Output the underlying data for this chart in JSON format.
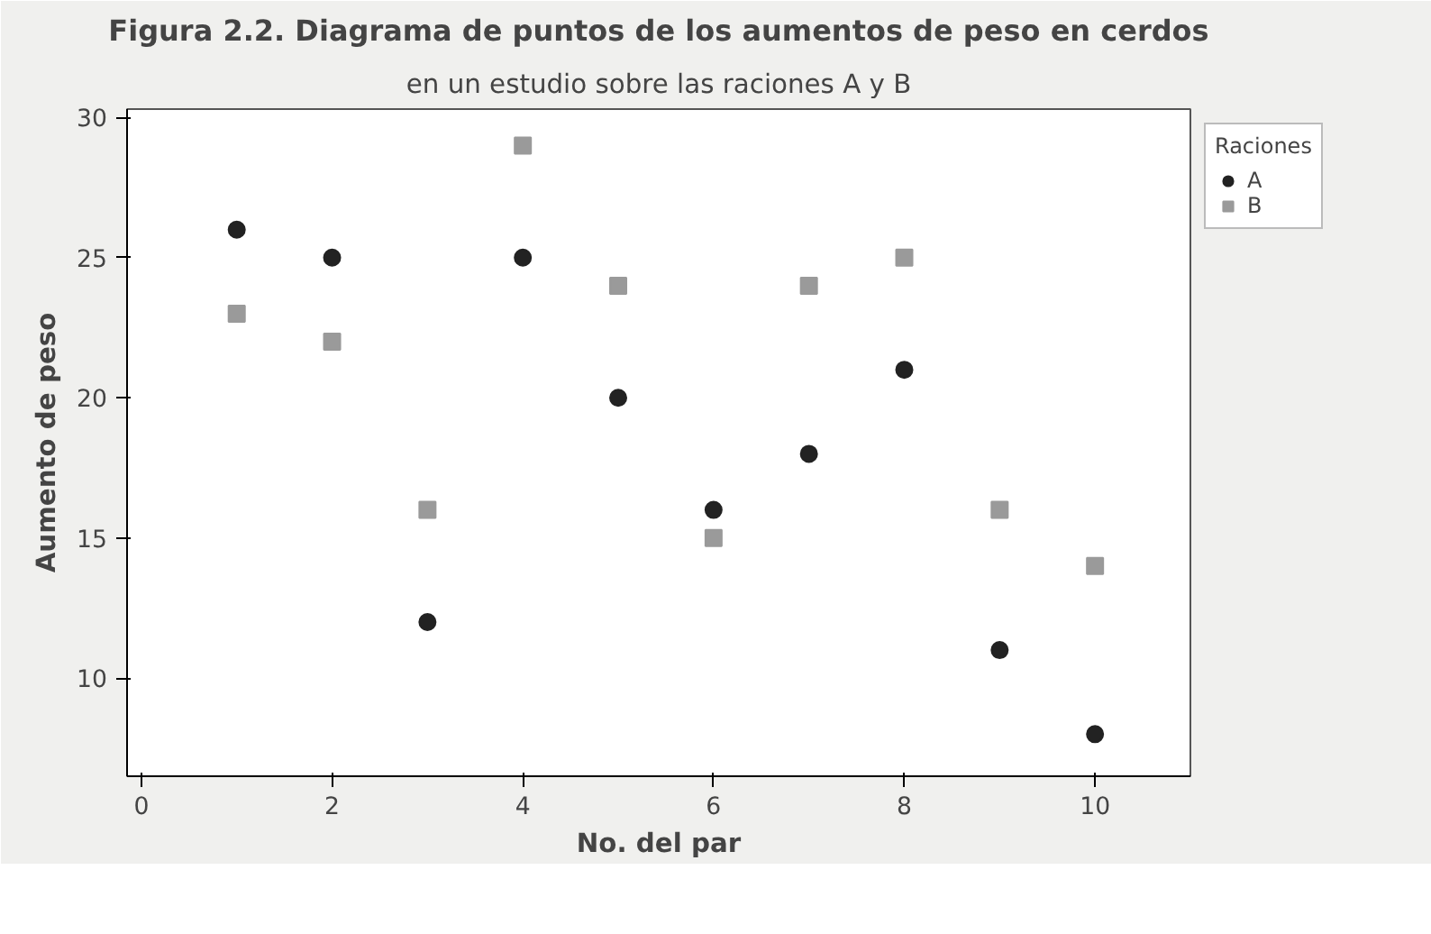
{
  "chart_data": {
    "type": "scatter",
    "title": "Figura 2.2. Diagrama de puntos de los aumentos de peso en cerdos",
    "subtitle": "en un estudio sobre las raciones A y B",
    "xlabel": "No. del par",
    "ylabel": "Aumento de peso",
    "legend_title": "Raciones",
    "x": [
      1,
      2,
      3,
      4,
      5,
      6,
      7,
      8,
      9,
      10
    ],
    "series": [
      {
        "name": "A",
        "color": "#222222",
        "marker": "circle",
        "values": [
          26,
          25,
          12,
          25,
          20,
          16,
          18,
          21,
          11,
          8
        ]
      },
      {
        "name": "B",
        "color": "#9a9a9a",
        "marker": "square",
        "values": [
          23,
          22,
          16,
          29,
          24,
          15,
          24,
          25,
          16,
          14
        ]
      }
    ],
    "xlim": [
      -0.15,
      11
    ],
    "ylim": [
      6.5,
      30.3
    ],
    "xticks": [
      0,
      2,
      4,
      6,
      8,
      10
    ],
    "yticks": [
      10,
      15,
      20,
      25,
      30
    ],
    "grid": false,
    "legend": "right"
  }
}
